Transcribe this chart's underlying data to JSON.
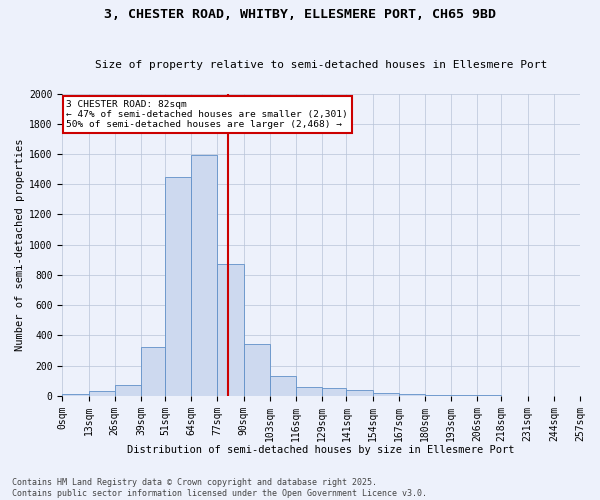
{
  "title1": "3, CHESTER ROAD, WHITBY, ELLESMERE PORT, CH65 9BD",
  "title2": "Size of property relative to semi-detached houses in Ellesmere Port",
  "xlabel": "Distribution of semi-detached houses by size in Ellesmere Port",
  "ylabel": "Number of semi-detached properties",
  "annotation_title": "3 CHESTER ROAD: 82sqm",
  "annotation_line1": "← 47% of semi-detached houses are smaller (2,301)",
  "annotation_line2": "50% of semi-detached houses are larger (2,468) →",
  "footer1": "Contains HM Land Registry data © Crown copyright and database right 2025.",
  "footer2": "Contains public sector information licensed under the Open Government Licence v3.0.",
  "bar_color": "#cdd9ef",
  "bar_edge_color": "#6090c8",
  "vline_color": "#cc0000",
  "vline_x": 82,
  "bin_edges": [
    0,
    13,
    26,
    39,
    51,
    64,
    77,
    90,
    103,
    116,
    129,
    141,
    154,
    167,
    180,
    193,
    206,
    218,
    231,
    244,
    257
  ],
  "bin_labels": [
    "0sqm",
    "13sqm",
    "26sqm",
    "39sqm",
    "51sqm",
    "64sqm",
    "77sqm",
    "90sqm",
    "103sqm",
    "116sqm",
    "129sqm",
    "141sqm",
    "154sqm",
    "167sqm",
    "180sqm",
    "193sqm",
    "206sqm",
    "218sqm",
    "231sqm",
    "244sqm",
    "257sqm"
  ],
  "counts": [
    15,
    35,
    75,
    320,
    1450,
    1590,
    870,
    340,
    130,
    60,
    55,
    40,
    20,
    10,
    5,
    3,
    3,
    2,
    2,
    2
  ],
  "ylim": [
    0,
    2000
  ],
  "yticks": [
    0,
    200,
    400,
    600,
    800,
    1000,
    1200,
    1400,
    1600,
    1800,
    2000
  ],
  "background_color": "#edf1fb",
  "annotation_box_color": "#ffffff",
  "annotation_box_edge": "#cc0000",
  "title1_fontsize": 9.5,
  "title2_fontsize": 8,
  "axis_fontsize": 7.5,
  "tick_fontsize": 7,
  "footer_fontsize": 6
}
